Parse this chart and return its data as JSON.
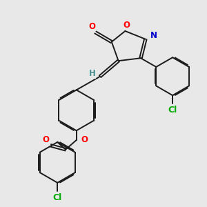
{
  "background_color": "#e8e8e8",
  "bond_color": "#1a1a1a",
  "atom_colors": {
    "O": "#ff0000",
    "N": "#0000cc",
    "Cl": "#00aa00",
    "H": "#4a9090",
    "C": "#1a1a1a"
  },
  "figsize": [
    3.0,
    3.0
  ],
  "dpi": 100
}
